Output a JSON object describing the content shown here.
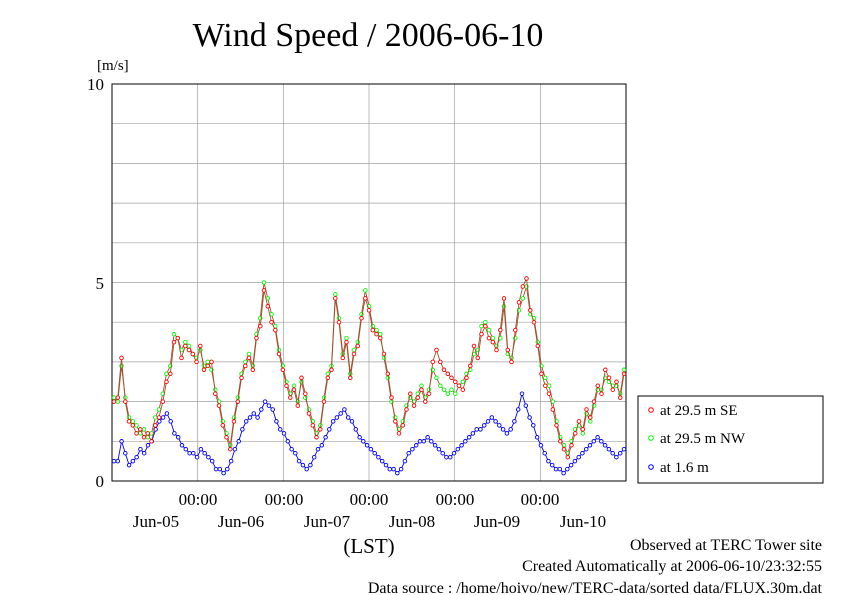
{
  "chart_data": {
    "type": "line",
    "title": "Wind Speed / 2006-06-10",
    "ylabel": "[m/s]",
    "xlabel": "(LST)",
    "ylim": [
      0,
      10
    ],
    "yticks": [
      "0",
      "5",
      "10"
    ],
    "x_time_labels": [
      "00:00",
      "00:00",
      "00:00",
      "00:00",
      "00:00"
    ],
    "x_date_labels": [
      "Jun-05",
      "Jun-06",
      "Jun-07",
      "Jun-08",
      "Jun-09",
      "Jun-10"
    ],
    "grid": true,
    "legend_position": "right",
    "series": [
      {
        "name": "at 29.5 m SE",
        "color": "#ff0000",
        "line_color": "#a0522d",
        "values": [
          2.0,
          2.1,
          3.1,
          2.0,
          1.5,
          1.4,
          1.2,
          1.3,
          1.1,
          1.2,
          1.0,
          1.4,
          1.6,
          2.0,
          2.5,
          2.7,
          3.5,
          3.6,
          3.1,
          3.4,
          3.3,
          3.2,
          3.0,
          3.4,
          2.8,
          2.9,
          3.0,
          2.2,
          1.9,
          1.4,
          1.1,
          0.8,
          1.5,
          2.0,
          2.6,
          2.9,
          3.1,
          2.8,
          3.6,
          3.9,
          4.8,
          4.4,
          4.0,
          3.8,
          3.2,
          2.8,
          2.4,
          2.1,
          2.3,
          1.9,
          2.6,
          2.2,
          1.7,
          1.4,
          1.1,
          1.3,
          2.0,
          2.6,
          2.8,
          4.6,
          4.0,
          3.1,
          3.5,
          2.6,
          3.2,
          3.4,
          4.1,
          4.6,
          4.3,
          3.8,
          3.7,
          3.6,
          3.2,
          2.7,
          2.1,
          1.5,
          1.2,
          1.4,
          1.8,
          2.2,
          1.9,
          2.1,
          2.3,
          2.0,
          2.2,
          3.0,
          3.3,
          3.0,
          2.8,
          2.7,
          2.6,
          2.5,
          2.4,
          2.3,
          2.6,
          2.9,
          3.4,
          3.1,
          3.7,
          3.9,
          3.6,
          3.5,
          3.3,
          3.8,
          4.6,
          3.3,
          3.0,
          3.8,
          4.5,
          4.9,
          5.1,
          4.3,
          4.0,
          3.4,
          2.7,
          2.4,
          2.2,
          1.8,
          1.4,
          1.0,
          0.8,
          0.6,
          0.9,
          1.2,
          1.5,
          1.3,
          1.8,
          1.6,
          2.0,
          2.4,
          2.2,
          2.8,
          2.6,
          2.3,
          2.5,
          2.1,
          2.7
        ]
      },
      {
        "name": "at 29.5 m NW",
        "color": "#00ff00",
        "line_color": "#a0522d",
        "values": [
          2.1,
          2.0,
          2.9,
          2.1,
          1.6,
          1.5,
          1.4,
          1.2,
          1.3,
          1.1,
          1.2,
          1.6,
          1.8,
          2.2,
          2.7,
          2.9,
          3.7,
          3.6,
          3.3,
          3.5,
          3.4,
          3.2,
          3.1,
          3.3,
          2.9,
          3.0,
          2.8,
          2.3,
          2.0,
          1.5,
          1.2,
          0.9,
          1.6,
          2.1,
          2.7,
          3.0,
          3.2,
          2.9,
          3.7,
          4.1,
          5.0,
          4.6,
          4.2,
          3.9,
          3.3,
          2.9,
          2.5,
          2.2,
          2.4,
          2.0,
          2.5,
          2.1,
          1.8,
          1.5,
          1.2,
          1.4,
          2.1,
          2.7,
          2.9,
          4.7,
          4.1,
          3.2,
          3.6,
          2.7,
          3.3,
          3.5,
          4.2,
          4.8,
          4.4,
          3.9,
          3.8,
          3.7,
          3.1,
          2.6,
          2.0,
          1.6,
          1.3,
          1.5,
          1.9,
          2.1,
          2.0,
          2.2,
          2.4,
          2.1,
          2.3,
          2.8,
          2.6,
          2.4,
          2.3,
          2.2,
          2.3,
          2.2,
          2.4,
          2.5,
          2.7,
          2.8,
          3.2,
          3.3,
          3.9,
          4.0,
          3.8,
          3.6,
          3.4,
          3.6,
          4.4,
          3.2,
          3.1,
          3.6,
          4.3,
          4.6,
          4.9,
          4.2,
          4.1,
          3.5,
          2.9,
          2.6,
          2.4,
          2.0,
          1.5,
          1.1,
          0.9,
          0.7,
          1.0,
          1.3,
          1.4,
          1.2,
          1.7,
          1.5,
          1.9,
          2.3,
          2.3,
          2.6,
          2.5,
          2.4,
          2.4,
          2.2,
          2.8
        ]
      },
      {
        "name": "at 1.6 m",
        "color": "#0000ff",
        "line_color": "#0000ff",
        "values": [
          0.5,
          0.5,
          1.0,
          0.7,
          0.4,
          0.5,
          0.6,
          0.8,
          0.7,
          0.9,
          1.0,
          1.3,
          1.5,
          1.6,
          1.7,
          1.5,
          1.2,
          1.1,
          0.9,
          0.8,
          0.7,
          0.7,
          0.6,
          0.8,
          0.7,
          0.6,
          0.5,
          0.3,
          0.3,
          0.2,
          0.3,
          0.5,
          0.8,
          1.0,
          1.3,
          1.5,
          1.6,
          1.7,
          1.6,
          1.8,
          2.0,
          1.9,
          1.8,
          1.5,
          1.3,
          1.2,
          1.0,
          0.8,
          0.7,
          0.5,
          0.4,
          0.3,
          0.4,
          0.6,
          0.8,
          0.9,
          1.1,
          1.3,
          1.5,
          1.6,
          1.7,
          1.8,
          1.6,
          1.5,
          1.3,
          1.1,
          1.0,
          0.9,
          0.8,
          0.7,
          0.6,
          0.5,
          0.4,
          0.3,
          0.3,
          0.2,
          0.3,
          0.5,
          0.7,
          0.8,
          0.9,
          1.0,
          1.0,
          1.1,
          1.0,
          0.9,
          0.8,
          0.7,
          0.6,
          0.6,
          0.7,
          0.8,
          0.9,
          1.0,
          1.1,
          1.2,
          1.3,
          1.3,
          1.4,
          1.5,
          1.6,
          1.5,
          1.4,
          1.3,
          1.2,
          1.3,
          1.5,
          1.8,
          2.2,
          1.9,
          1.6,
          1.4,
          1.1,
          0.9,
          0.7,
          0.5,
          0.4,
          0.3,
          0.3,
          0.2,
          0.3,
          0.4,
          0.5,
          0.6,
          0.7,
          0.8,
          0.9,
          1.0,
          1.1,
          1.0,
          0.9,
          0.8,
          0.7,
          0.6,
          0.7,
          0.8
        ]
      }
    ]
  },
  "footer": {
    "line1": "Observed at TERC Tower site",
    "line2": "Created Automatically at 2006-06-10/23:32:55",
    "line3": "Data source : /home/hoivo/new/TERC-data/sorted  data/FLUX.30m.dat"
  }
}
